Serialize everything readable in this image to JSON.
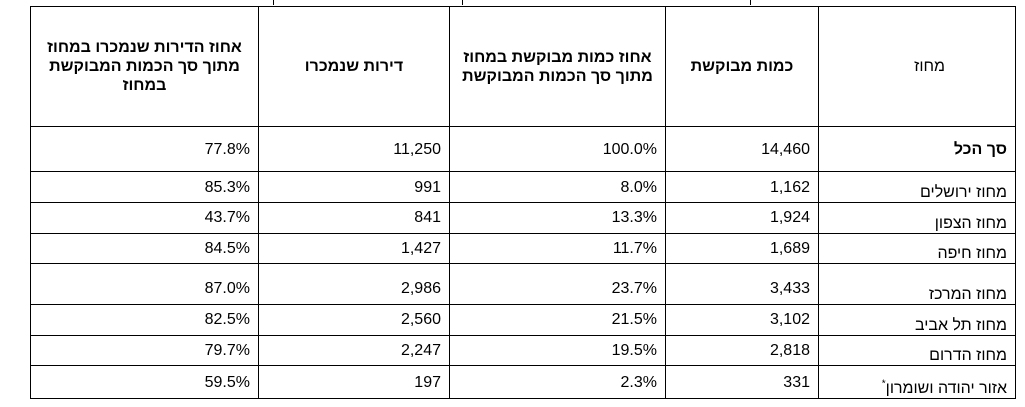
{
  "table": {
    "headers": {
      "pct_sold_of_demanded": "אחוז הדירות שנמכרו במחוז מתוך סך הכמות המבוקשת במחוז",
      "sold": "דירות שנמכרו",
      "pct_demanded_of_total": "אחוז כמות מבוקשת במחוז מתוך סך הכמות המבוקשת",
      "demanded": "כמות מבוקשת",
      "district": "מחוז"
    },
    "rows": [
      {
        "district": "סך הכל",
        "demanded": "14,460",
        "pct_demanded_of_total": "100.0%",
        "sold": "11,250",
        "pct_sold_of_demanded": "77.8%"
      },
      {
        "district": "מחוז ירושלים",
        "demanded": "1,162",
        "pct_demanded_of_total": "8.0%",
        "sold": "991",
        "pct_sold_of_demanded": "85.3%"
      },
      {
        "district": "מחוז הצפון",
        "demanded": "1,924",
        "pct_demanded_of_total": "13.3%",
        "sold": "841",
        "pct_sold_of_demanded": "43.7%"
      },
      {
        "district": "מחוז חיפה",
        "demanded": "1,689",
        "pct_demanded_of_total": "11.7%",
        "sold": "1,427",
        "pct_sold_of_demanded": "84.5%"
      },
      {
        "district": "מחוז המרכז",
        "demanded": "3,433",
        "pct_demanded_of_total": "23.7%",
        "sold": "2,986",
        "pct_sold_of_demanded": "87.0%"
      },
      {
        "district": "מחוז תל אביב",
        "demanded": "3,102",
        "pct_demanded_of_total": "21.5%",
        "sold": "2,560",
        "pct_sold_of_demanded": "82.5%"
      },
      {
        "district": "מחוז הדרום",
        "demanded": "2,818",
        "pct_demanded_of_total": "19.5%",
        "sold": "2,247",
        "pct_sold_of_demanded": "79.7%"
      },
      {
        "district": "אזור יהודה ושומרון",
        "footnote_mark": "*",
        "demanded": "331",
        "pct_demanded_of_total": "2.3%",
        "sold": "197",
        "pct_sold_of_demanded": "59.5%"
      }
    ]
  }
}
